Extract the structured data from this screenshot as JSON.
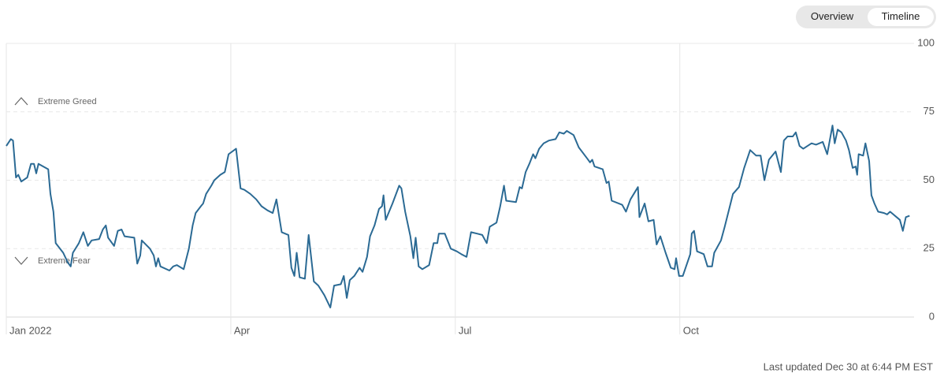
{
  "chart_data": {
    "type": "line",
    "buttons": [
      "Overview",
      "Timeline"
    ],
    "annotations": [
      "Extreme Greed",
      "Extreme Fear"
    ],
    "footer": "Last updated Dec 30 at 6:44 PM EST",
    "color": "#2b6a94",
    "grid": true,
    "xlim": [
      0,
      12.13
    ],
    "xticks": [
      {
        "value": 0,
        "label": "Jan 2022"
      },
      {
        "value": 3,
        "label": "Apr"
      },
      {
        "value": 6,
        "label": "Jul"
      },
      {
        "value": 9,
        "label": "Oct"
      }
    ],
    "ylim": [
      0,
      100
    ],
    "yticks": [
      0,
      25,
      50,
      75,
      100
    ],
    "x": [
      0,
      0.06,
      0.09,
      0.13,
      0.16,
      0.2,
      0.28,
      0.33,
      0.37,
      0.4,
      0.43,
      0.56,
      0.59,
      0.63,
      0.66,
      0.76,
      0.82,
      0.86,
      0.89,
      0.97,
      1.03,
      1.09,
      1.14,
      1.24,
      1.29,
      1.33,
      1.36,
      1.44,
      1.49,
      1.54,
      1.58,
      1.71,
      1.75,
      1.79,
      1.81,
      1.92,
      1.97,
      2.0,
      2.03,
      2.06,
      2.18,
      2.23,
      2.28,
      2.37,
      2.44,
      2.49,
      2.53,
      2.6,
      2.63,
      2.67,
      2.74,
      2.78,
      2.86,
      2.92,
      2.97,
      3.07,
      3.13,
      3.18,
      3.26,
      3.34,
      3.41,
      3.49,
      3.56,
      3.61,
      3.68,
      3.77,
      3.81,
      3.85,
      3.88,
      3.92,
      3.99,
      4.04,
      4.11,
      4.17,
      4.25,
      4.33,
      4.38,
      4.47,
      4.51,
      4.55,
      4.59,
      4.65,
      4.72,
      4.76,
      4.82,
      4.86,
      4.92,
      4.98,
      5.02,
      5.04,
      5.07,
      5.16,
      5.25,
      5.28,
      5.33,
      5.4,
      5.44,
      5.47,
      5.51,
      5.56,
      5.65,
      5.71,
      5.76,
      5.78,
      5.86,
      5.94,
      6.02,
      6.08,
      6.15,
      6.21,
      6.29,
      6.36,
      6.42,
      6.46,
      6.55,
      6.6,
      6.65,
      6.68,
      6.81,
      6.86,
      6.89,
      6.94,
      6.99,
      7.04,
      7.07,
      7.12,
      7.18,
      7.25,
      7.34,
      7.39,
      7.45,
      7.49,
      7.58,
      7.65,
      7.76,
      7.8,
      7.83,
      7.86,
      7.97,
      8.02,
      8.05,
      8.09,
      8.23,
      8.28,
      8.34,
      8.44,
      8.46,
      8.53,
      8.58,
      8.65,
      8.69,
      8.74,
      8.81,
      8.88,
      8.93,
      8.95,
      8.99,
      9.04,
      9.14,
      9.16,
      9.19,
      9.23,
      9.32,
      9.37,
      9.43,
      9.46,
      9.55,
      9.6,
      9.71,
      9.79,
      9.86,
      9.94,
      10.02,
      10.08,
      10.13,
      10.19,
      10.28,
      10.35,
      10.39,
      10.44,
      10.51,
      10.55,
      10.6,
      10.65,
      10.76,
      10.82,
      10.91,
      10.97,
      11.04,
      11.07,
      11.11,
      11.16,
      11.22,
      11.26,
      11.31,
      11.35,
      11.37,
      11.39,
      11.45,
      11.48,
      11.53,
      11.56,
      11.6,
      11.65,
      11.73,
      11.77,
      11.81,
      11.94,
      11.98,
      12.02,
      12.07
    ],
    "values": [
      62.5,
      65,
      64.5,
      51,
      52,
      49.5,
      51,
      56,
      56,
      52.5,
      56,
      54,
      45,
      38.5,
      27,
      23.5,
      20,
      18.5,
      23.5,
      27,
      31,
      26,
      28,
      28.5,
      32,
      33.5,
      29,
      26,
      31.5,
      32,
      29.5,
      29,
      19.5,
      22.5,
      28,
      25,
      22.5,
      18.5,
      21.5,
      18.5,
      17,
      18.5,
      19,
      17.5,
      25,
      33.5,
      38,
      40.5,
      41.5,
      45,
      48,
      50,
      52,
      53,
      59.5,
      61.5,
      47,
      46.5,
      45,
      43,
      40.5,
      39,
      38,
      43,
      31,
      30,
      18,
      15,
      23.5,
      14.5,
      14,
      30,
      13,
      11.5,
      8,
      3.5,
      11.5,
      12,
      15,
      7,
      13.5,
      15,
      18,
      16.5,
      22,
      29.5,
      33.5,
      39.5,
      40.5,
      44.5,
      35.5,
      41.5,
      48,
      47,
      38.5,
      29.5,
      21.5,
      29,
      18.5,
      17.5,
      19,
      27,
      27,
      30.5,
      30.5,
      25,
      24,
      23,
      22,
      31,
      30.5,
      30,
      27,
      33,
      34.5,
      40.5,
      48,
      42.5,
      42,
      47.5,
      47,
      53,
      56,
      59.5,
      58,
      61.5,
      63.5,
      64.5,
      65,
      67.5,
      67,
      68,
      66.5,
      62,
      58,
      56.5,
      57.5,
      55,
      54,
      49,
      49.5,
      42.5,
      41,
      38.5,
      43,
      47.5,
      36.5,
      41.5,
      35,
      35.5,
      26.5,
      29.5,
      23.5,
      18,
      17.5,
      21.5,
      15,
      15,
      23,
      30.5,
      31.5,
      24,
      23,
      18.5,
      18.5,
      23.5,
      28,
      33,
      45,
      47.5,
      54.5,
      61,
      59,
      59,
      50,
      57.5,
      60.5,
      53,
      64.5,
      66,
      66,
      67.5,
      62.5,
      61.5,
      63.5,
      63,
      64,
      59.5,
      70,
      63.5,
      68.5,
      67.5,
      64.5,
      61,
      54.5,
      55,
      52,
      59.5,
      59,
      63.5,
      57,
      44.5,
      41.5,
      38.5,
      38,
      37.5,
      38.5,
      35.5,
      31.5,
      36.5,
      37
    ]
  }
}
